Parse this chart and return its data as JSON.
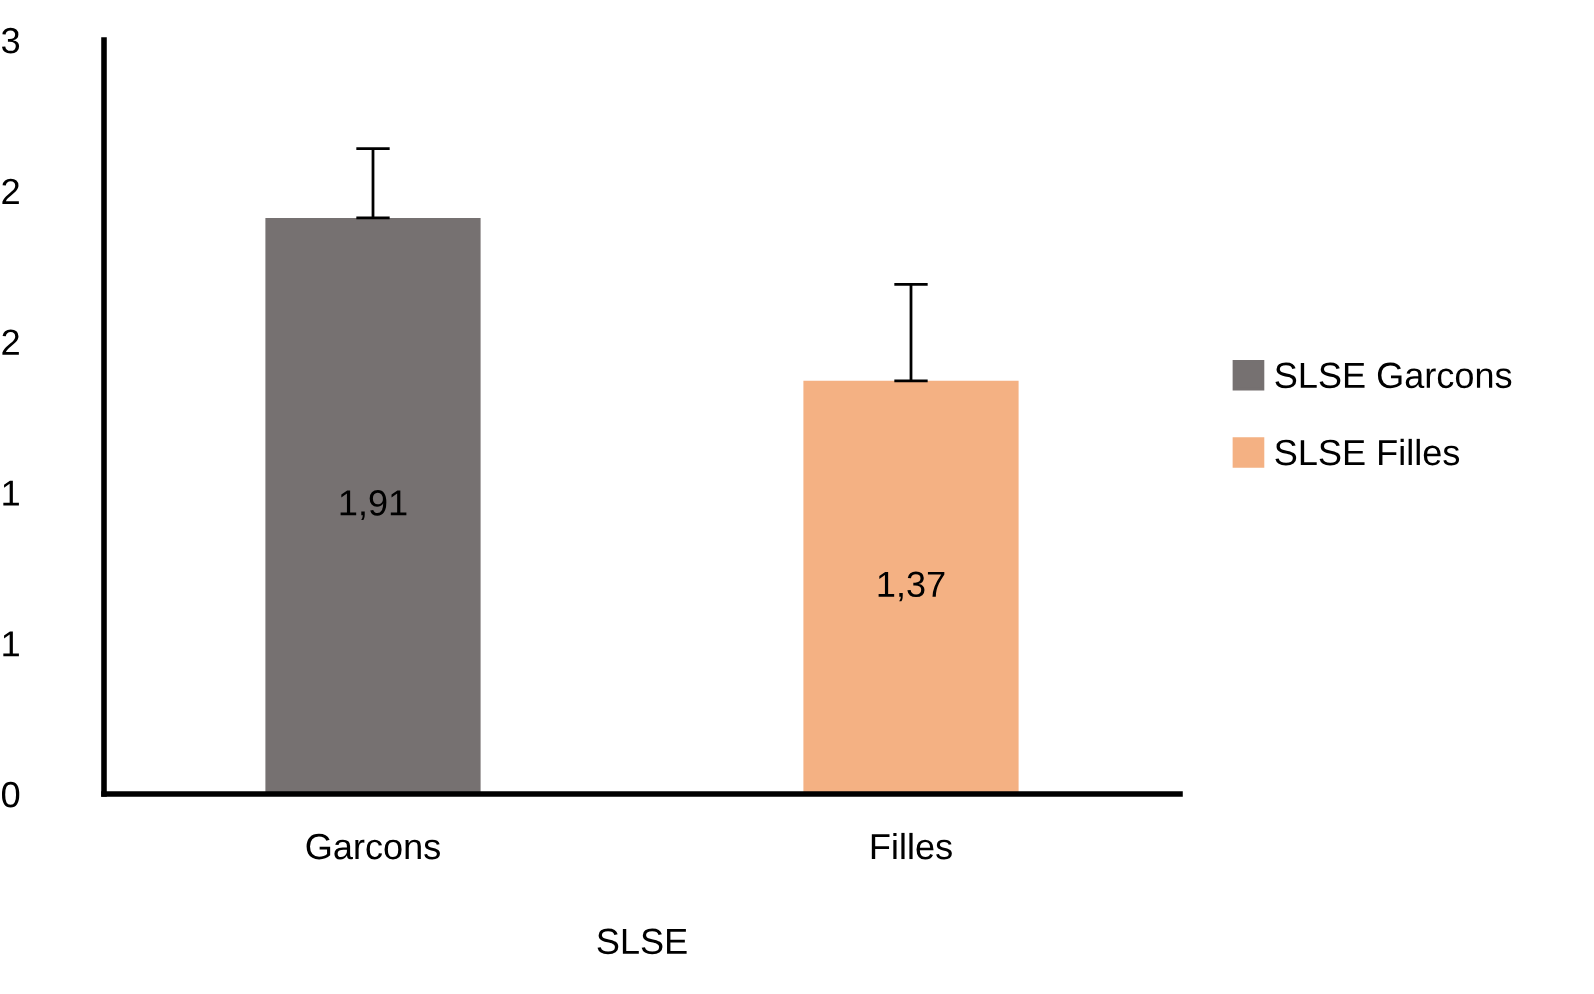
{
  "chart_data": {
    "type": "bar",
    "categories": [
      "Garcons",
      "Filles"
    ],
    "xlabel": "SLSE",
    "series": [
      {
        "name": "SLSE Garcons",
        "color": "#767171",
        "values": [
          1.91,
          null
        ],
        "value_labels": [
          "1,91",
          null
        ],
        "errors": [
          [
            1.91,
            2.14
          ],
          null
        ]
      },
      {
        "name": "SLSE Filles",
        "color": "#f4b183",
        "values": [
          null,
          1.37
        ],
        "value_labels": [
          null,
          "1,37"
        ],
        "errors": [
          null,
          [
            1.37,
            1.69
          ]
        ]
      }
    ],
    "ylim": [
      0,
      2.5
    ],
    "yticks": [
      0,
      {
        "value": 0.5,
        "label": "1"
      },
      1,
      {
        "value": 1.5,
        "label": "2"
      },
      2,
      {
        "value": 2.5,
        "label": "3"
      }
    ],
    "grid": false,
    "legend": "right"
  }
}
